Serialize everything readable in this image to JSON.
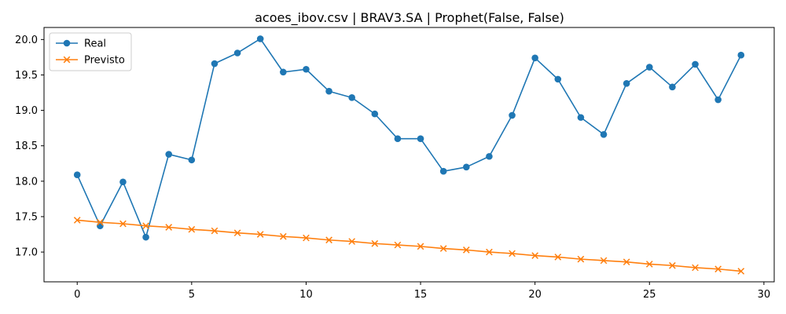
{
  "chart_data": {
    "type": "line",
    "title": "acoes_ibov.csv | BRAV3.SA | Prophet(False, False)",
    "xlabel": "",
    "ylabel": "",
    "xlim": [
      -1.45,
      30.45
    ],
    "ylim": [
      16.58,
      20.17
    ],
    "xticks": [
      0,
      5,
      10,
      15,
      20,
      25,
      30
    ],
    "yticks": [
      17.0,
      17.5,
      18.0,
      18.5,
      19.0,
      19.5,
      20.0
    ],
    "xtick_labels": [
      "0",
      "5",
      "10",
      "15",
      "20",
      "25",
      "30"
    ],
    "ytick_labels": [
      "17.0",
      "17.5",
      "18.0",
      "18.5",
      "19.0",
      "19.5",
      "20.0"
    ],
    "grid": false,
    "legend_position": "top-left",
    "x": [
      0,
      1,
      2,
      3,
      4,
      5,
      6,
      7,
      8,
      9,
      10,
      11,
      12,
      13,
      14,
      15,
      16,
      17,
      18,
      19,
      20,
      21,
      22,
      23,
      24,
      25,
      26,
      27,
      28,
      29
    ],
    "series": [
      {
        "name": "Real",
        "color": "#1f77b4",
        "marker": "circle",
        "values": [
          18.09,
          17.37,
          17.99,
          17.21,
          18.38,
          18.3,
          19.66,
          19.81,
          20.01,
          19.54,
          19.58,
          19.27,
          19.18,
          18.95,
          18.6,
          18.6,
          18.14,
          18.2,
          18.35,
          18.93,
          19.74,
          19.44,
          18.9,
          18.66,
          19.38,
          19.61,
          19.33,
          19.65,
          19.15,
          19.78
        ]
      },
      {
        "name": "Previsto",
        "color": "#ff7f0e",
        "marker": "x",
        "values": [
          17.45,
          17.42,
          17.4,
          17.37,
          17.35,
          17.32,
          17.3,
          17.27,
          17.25,
          17.22,
          17.2,
          17.17,
          17.15,
          17.12,
          17.1,
          17.08,
          17.05,
          17.03,
          17.0,
          16.98,
          16.95,
          16.93,
          16.9,
          16.88,
          16.86,
          16.83,
          16.81,
          16.78,
          16.76,
          16.73
        ]
      }
    ]
  }
}
